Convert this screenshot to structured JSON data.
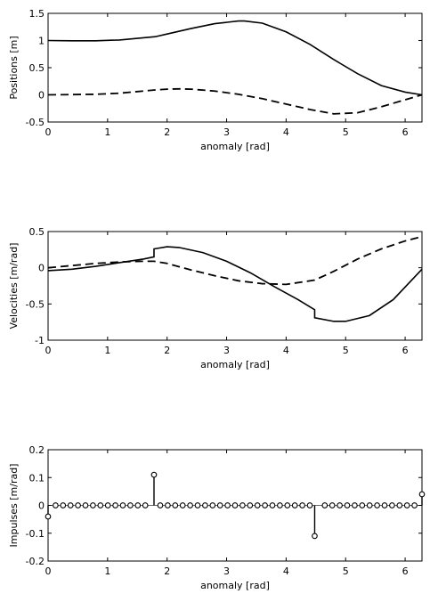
{
  "chart_data": [
    {
      "type": "line",
      "xlabel": "anomaly [rad]",
      "ylabel": "Positions [m]",
      "xlim": [
        0,
        6.2832
      ],
      "ylim": [
        -0.5,
        1.5
      ],
      "xticks": [
        0,
        1,
        2,
        3,
        4,
        5,
        6
      ],
      "yticks": [
        -0.5,
        0,
        0.5,
        1,
        1.5
      ],
      "xtick_labels": [
        "0",
        "1",
        "2",
        "3",
        "4",
        "5",
        "6"
      ],
      "ytick_labels": [
        "-0.5",
        "0",
        "0.5",
        "1",
        "1.5"
      ],
      "series": [
        {
          "style": "solid",
          "x": [
            0,
            0.4,
            0.8,
            1.2,
            1.6,
            1.8,
            2.0,
            2.4,
            2.8,
            3.2,
            3.3,
            3.6,
            4.0,
            4.4,
            4.8,
            5.2,
            5.6,
            6.0,
            6.2832
          ],
          "y": [
            1.0,
            0.995,
            0.995,
            1.01,
            1.05,
            1.07,
            1.12,
            1.22,
            1.31,
            1.36,
            1.36,
            1.32,
            1.16,
            0.93,
            0.65,
            0.39,
            0.17,
            0.05,
            0.0
          ]
        },
        {
          "style": "dashed",
          "x": [
            0,
            0.4,
            0.8,
            1.2,
            1.6,
            1.8,
            2.0,
            2.2,
            2.4,
            2.8,
            3.2,
            3.6,
            4.0,
            4.4,
            4.8,
            5.2,
            5.6,
            6.0,
            6.2832
          ],
          "y": [
            0.0,
            0.005,
            0.01,
            0.03,
            0.07,
            0.09,
            0.105,
            0.11,
            0.105,
            0.07,
            0.01,
            -0.07,
            -0.17,
            -0.27,
            -0.35,
            -0.33,
            -0.22,
            -0.09,
            0.0
          ]
        }
      ]
    },
    {
      "type": "line",
      "xlabel": "anomaly [rad]",
      "ylabel": "Velocities [m/rad]",
      "xlim": [
        0,
        6.2832
      ],
      "ylim": [
        -1,
        0.5
      ],
      "xticks": [
        0,
        1,
        2,
        3,
        4,
        5,
        6
      ],
      "yticks": [
        -1,
        -0.5,
        0,
        0.5
      ],
      "xtick_labels": [
        "0",
        "1",
        "2",
        "3",
        "4",
        "5",
        "6"
      ],
      "ytick_labels": [
        "-1",
        "-0.5",
        "0",
        "0.5"
      ],
      "series": [
        {
          "style": "solid",
          "x": [
            0,
            0.4,
            0.8,
            1.2,
            1.6,
            1.78,
            1.78,
            2.0,
            2.2,
            2.6,
            3.0,
            3.4,
            3.8,
            4.2,
            4.48,
            4.48,
            4.8,
            5.0,
            5.4,
            5.8,
            6.2832
          ],
          "y": [
            -0.04,
            -0.02,
            0.02,
            0.07,
            0.12,
            0.15,
            0.26,
            0.29,
            0.28,
            0.21,
            0.09,
            -0.07,
            -0.26,
            -0.44,
            -0.58,
            -0.69,
            -0.74,
            -0.74,
            -0.66,
            -0.44,
            -0.02
          ]
        },
        {
          "style": "dashed",
          "x": [
            0,
            0.4,
            0.8,
            1.2,
            1.6,
            1.78,
            2.0,
            2.4,
            2.8,
            3.2,
            3.6,
            4.0,
            4.48,
            4.8,
            5.2,
            5.6,
            6.0,
            6.2832
          ],
          "y": [
            0.0,
            0.03,
            0.06,
            0.08,
            0.09,
            0.09,
            0.06,
            -0.03,
            -0.11,
            -0.18,
            -0.22,
            -0.23,
            -0.17,
            -0.05,
            0.12,
            0.26,
            0.37,
            0.43
          ]
        }
      ]
    },
    {
      "type": "scatter",
      "xlabel": "anomaly [rad]",
      "ylabel": "Impulses [m/rad]",
      "xlim": [
        0,
        6.2832
      ],
      "ylim": [
        -0.2,
        0.2
      ],
      "xticks": [
        0,
        1,
        2,
        3,
        4,
        5,
        6
      ],
      "yticks": [
        -0.2,
        -0.1,
        0,
        0.1,
        0.2
      ],
      "xtick_labels": [
        "0",
        "1",
        "2",
        "3",
        "4",
        "5",
        "6"
      ],
      "ytick_labels": [
        "-0.2",
        "-0.1",
        "0",
        "0.1",
        "0.2"
      ],
      "stem_count": 51,
      "nonzero": [
        {
          "x": 0.0,
          "y": -0.04
        },
        {
          "x": 1.78,
          "y": 0.11
        },
        {
          "x": 4.48,
          "y": -0.11
        },
        {
          "x": 6.2832,
          "y": 0.04
        }
      ]
    }
  ]
}
